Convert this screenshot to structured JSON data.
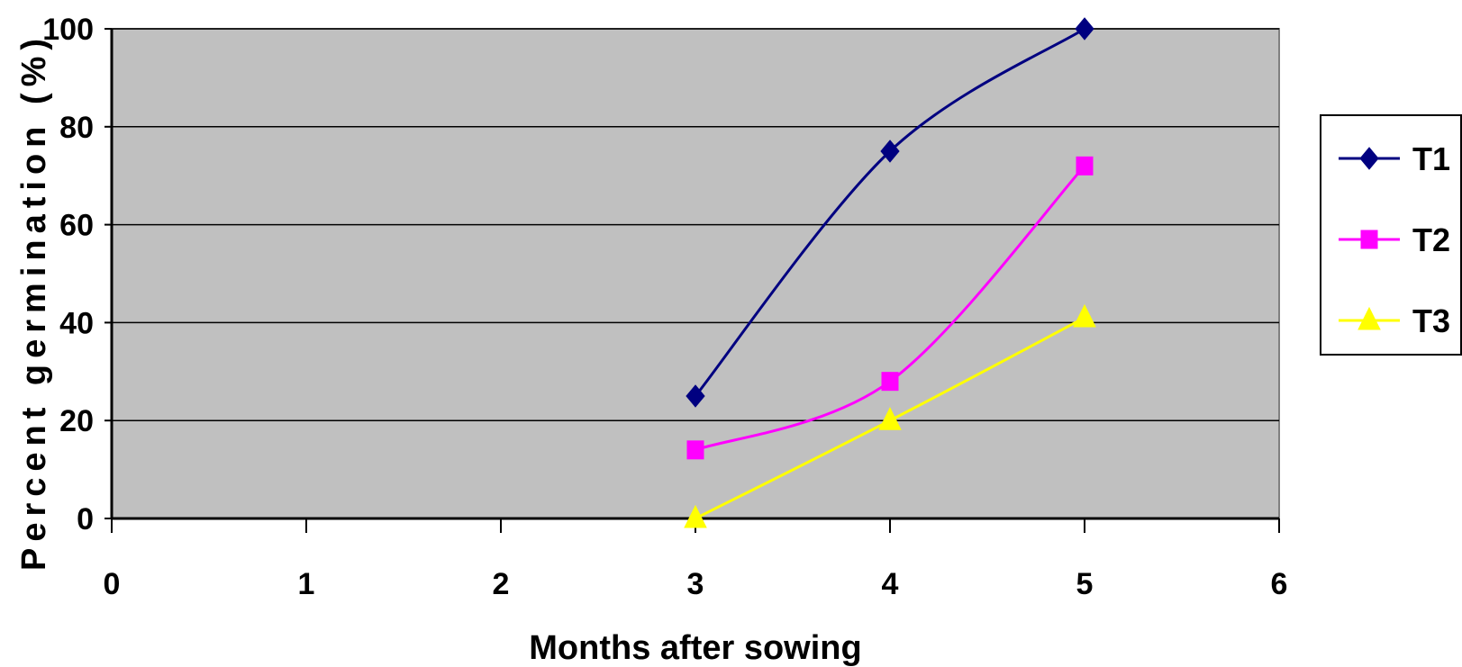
{
  "chart_data": {
    "type": "line",
    "xlabel": "Months after sowing",
    "ylabel": "Percent germination (%)",
    "xlim": [
      0,
      6
    ],
    "ylim": [
      0,
      100
    ],
    "xticks": [
      "0",
      "1",
      "2",
      "3",
      "4",
      "5",
      "6"
    ],
    "yticks": [
      "0",
      "20",
      "40",
      "60",
      "80",
      "100"
    ],
    "grid": true,
    "legend_position": "right",
    "plot_background": "#c0c0c0",
    "series": [
      {
        "name": "T1",
        "x": [
          3,
          4,
          5
        ],
        "y": [
          25,
          75,
          100
        ],
        "color": "#000080",
        "marker": "diamond"
      },
      {
        "name": "T2",
        "x": [
          3,
          4,
          5
        ],
        "y": [
          14,
          28,
          72
        ],
        "color": "#ff00ff",
        "marker": "square"
      },
      {
        "name": "T3",
        "x": [
          3,
          4,
          5
        ],
        "y": [
          0,
          20,
          41
        ],
        "color": "#ffff00",
        "marker": "triangle"
      }
    ]
  }
}
